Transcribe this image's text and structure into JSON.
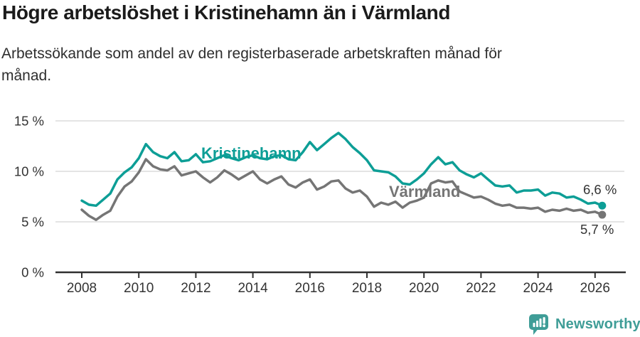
{
  "header": {
    "title": "Högre arbetslöshet i Kristinehamn än i Värmland",
    "subtitle": "Arbetssökande som andel av den registerbaserade arbetskraften månad för\nmånad."
  },
  "colors": {
    "kristinehamn": "#0d9e96",
    "varmland": "#757575",
    "grid": "#dbdbdb",
    "axis": "#303030",
    "tick_text": "#333333",
    "value_label": "#333333",
    "brand_teal": "#3f9d97"
  },
  "chart_data": {
    "type": "line",
    "unit": "%",
    "ylim": [
      0,
      15
    ],
    "grid": "horizontal",
    "legend": "inline-labels",
    "yticks": [
      0,
      5,
      10,
      15
    ],
    "ytick_labels": [
      "0 %",
      "5 %",
      "10 %",
      "15 %"
    ],
    "xticks": [
      2008,
      2010,
      2012,
      2014,
      2016,
      2018,
      2020,
      2022,
      2024,
      2026
    ],
    "x": [
      2008.0,
      2008.25,
      2008.5,
      2008.75,
      2009.0,
      2009.25,
      2009.5,
      2009.75,
      2010.0,
      2010.25,
      2010.5,
      2010.75,
      2011.0,
      2011.25,
      2011.5,
      2011.75,
      2012.0,
      2012.25,
      2012.5,
      2012.75,
      2013.0,
      2013.25,
      2013.5,
      2013.75,
      2014.0,
      2014.25,
      2014.5,
      2014.75,
      2015.0,
      2015.25,
      2015.5,
      2015.75,
      2016.0,
      2016.25,
      2016.5,
      2016.75,
      2017.0,
      2017.25,
      2017.5,
      2017.75,
      2018.0,
      2018.25,
      2018.5,
      2018.75,
      2019.0,
      2019.25,
      2019.5,
      2019.75,
      2020.0,
      2020.25,
      2020.5,
      2020.75,
      2021.0,
      2021.25,
      2021.5,
      2021.75,
      2022.0,
      2022.25,
      2022.5,
      2022.75,
      2023.0,
      2023.25,
      2023.5,
      2023.75,
      2024.0,
      2024.25,
      2024.5,
      2024.75,
      2025.0,
      2025.25,
      2025.5,
      2025.75,
      2026.0,
      2026.25
    ],
    "series": [
      {
        "id": "kristinehamn",
        "name": "Kristinehamn",
        "color": "#0d9e96",
        "end_label": "6,6 %",
        "values": [
          7.1,
          6.7,
          6.6,
          7.2,
          7.8,
          9.2,
          9.9,
          10.4,
          11.3,
          12.7,
          11.9,
          11.5,
          11.3,
          11.9,
          11.0,
          11.1,
          11.7,
          10.9,
          11.0,
          11.3,
          11.6,
          11.3,
          11.1,
          11.4,
          11.6,
          11.3,
          11.2,
          11.5,
          11.6,
          11.2,
          11.1,
          11.9,
          12.9,
          12.1,
          12.7,
          13.3,
          13.8,
          13.2,
          12.4,
          11.8,
          11.1,
          10.1,
          10.0,
          9.9,
          9.5,
          8.8,
          8.7,
          9.2,
          9.8,
          10.7,
          11.4,
          10.7,
          10.9,
          10.1,
          9.7,
          9.4,
          9.8,
          9.2,
          8.6,
          8.5,
          8.6,
          7.9,
          8.1,
          8.1,
          8.2,
          7.6,
          7.9,
          7.8,
          7.4,
          7.5,
          7.2,
          6.8,
          6.9,
          6.6
        ]
      },
      {
        "id": "varmland",
        "name": "Värmland",
        "color": "#757575",
        "end_label": "5,7 %",
        "values": [
          6.2,
          5.6,
          5.2,
          5.7,
          6.1,
          7.5,
          8.5,
          9.0,
          9.9,
          11.2,
          10.5,
          10.2,
          10.1,
          10.5,
          9.6,
          9.8,
          10.0,
          9.4,
          8.9,
          9.4,
          10.1,
          9.7,
          9.2,
          9.6,
          10.0,
          9.2,
          8.8,
          9.2,
          9.5,
          8.7,
          8.4,
          8.9,
          9.2,
          8.2,
          8.5,
          9.0,
          9.1,
          8.3,
          7.9,
          8.1,
          7.5,
          6.5,
          6.9,
          6.7,
          7.0,
          6.4,
          6.9,
          7.1,
          7.4,
          8.8,
          9.1,
          8.9,
          9.0,
          8.0,
          7.7,
          7.4,
          7.5,
          7.2,
          6.8,
          6.6,
          6.7,
          6.4,
          6.4,
          6.3,
          6.4,
          6.0,
          6.2,
          6.1,
          6.3,
          6.1,
          6.2,
          5.9,
          6.0,
          5.7
        ]
      }
    ]
  },
  "footer": {
    "brand": "Newsworthy"
  }
}
